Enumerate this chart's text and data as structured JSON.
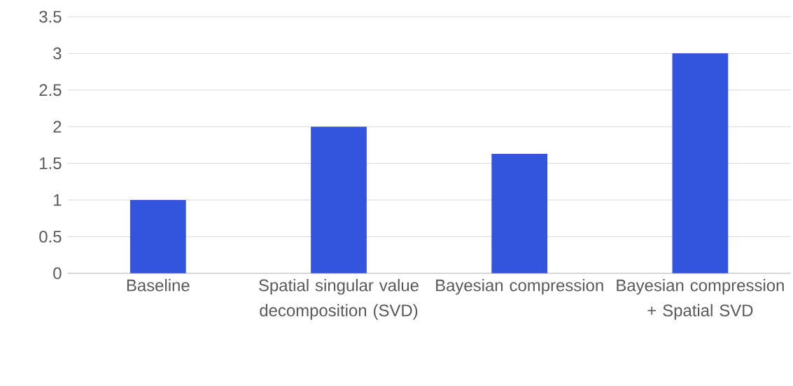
{
  "chart_data": {
    "type": "bar",
    "categories": [
      "Baseline",
      "Spatial singular value decomposition (SVD)",
      "Bayesian compression",
      "Bayesian compression + Spatial SVD"
    ],
    "values": [
      1,
      2,
      1.63,
      3
    ],
    "color": "#3355dd",
    "ylim": [
      0,
      3.5
    ],
    "yticks": [
      0,
      0.5,
      1,
      1.5,
      2,
      2.5,
      3,
      3.5
    ],
    "grid": "y"
  }
}
